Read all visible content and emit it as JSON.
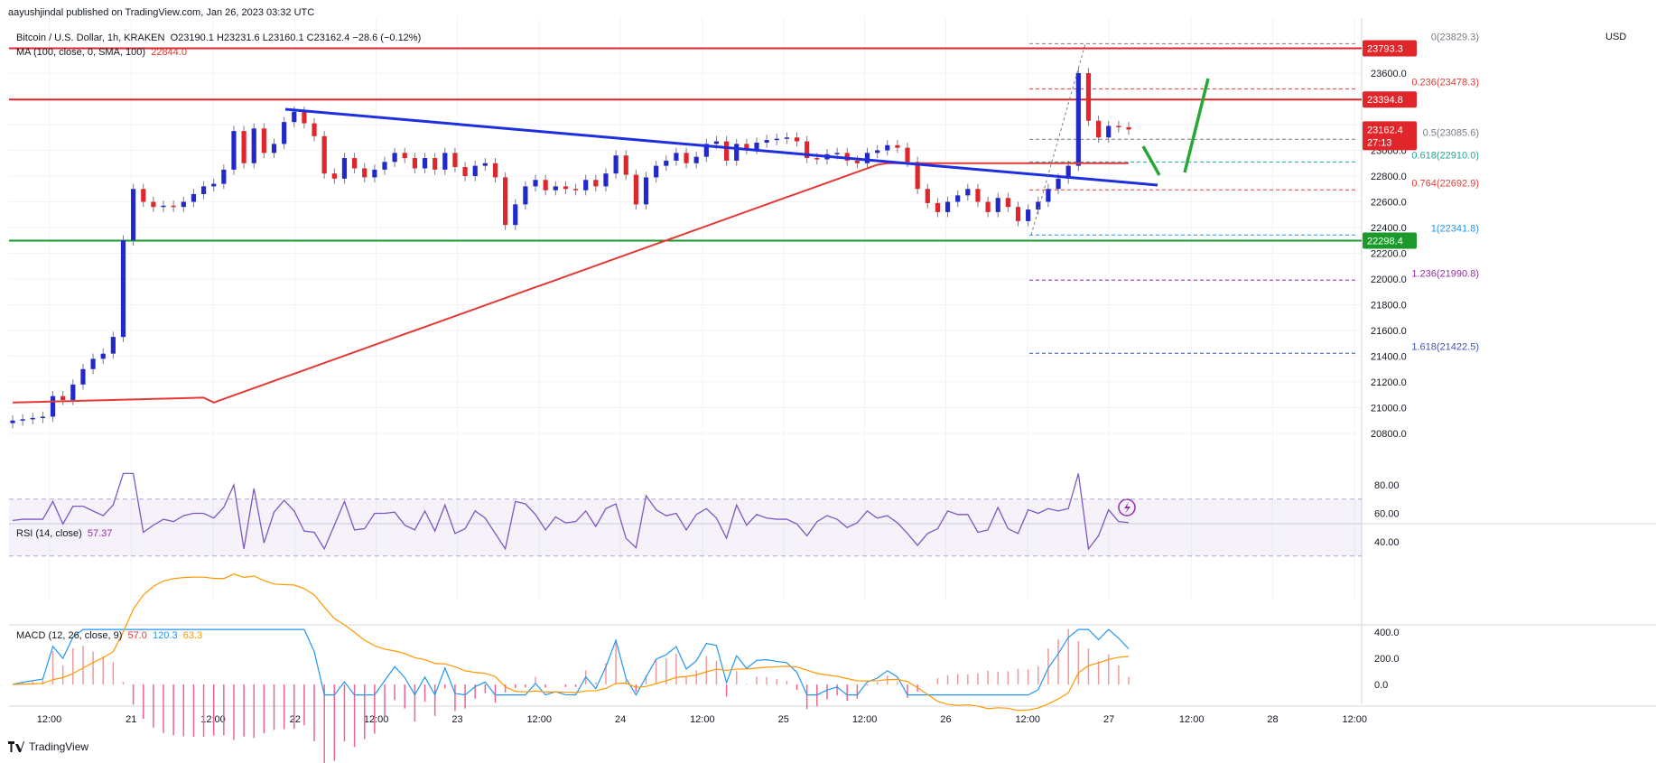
{
  "header": {
    "publisher": "aayushjindal published on TradingView.com, Jan 26, 2023 03:32 UTC",
    "symbol": "Bitcoin / U.S. Dollar, 1h, KRAKEN",
    "ohlc": "O23190.1  H23231.6  L23160.1  C23162.4  −28.6 (−0.12%)",
    "ma_label": "MA (100, close, 0, SMA, 100)",
    "ma_value": "22844.0",
    "currency": "USD"
  },
  "rsi": {
    "label": "RSI (14, close)",
    "value": "57.37"
  },
  "macd": {
    "label": "MACD (12, 26, close, 9)",
    "hist": "57.0",
    "macd": "120.3",
    "signal": "63.3"
  },
  "footer": {
    "brand": "TradingView"
  },
  "colors": {
    "up": "#2229c9",
    "down": "#e0262b",
    "resistance": "#e0262b",
    "support": "#1a9a2a",
    "trendline": "#1f2ee0",
    "ma": "#e53935",
    "rsi": "#7e57c2",
    "macd": "#2196f3",
    "signal": "#ff9800",
    "arrow": "#27a736"
  },
  "chart_data": {
    "type": "candlestick",
    "title": "Bitcoin / U.S. Dollar, 1h, KRAKEN",
    "x_tick_labels": [
      "12:00",
      "21",
      "12:00",
      "22",
      "12:00",
      "23",
      "12:00",
      "24",
      "12:00",
      "25",
      "12:00",
      "26",
      "12:00",
      "27",
      "12:00",
      "28",
      "12:00"
    ],
    "y_tick_labels": [
      20800,
      21000,
      21200,
      21400,
      21600,
      21800,
      22000,
      22200,
      22400,
      22600,
      22800,
      23000,
      23200,
      23400,
      23600
    ],
    "ylim": [
      20650,
      23960
    ],
    "closes": [
      20900,
      20910,
      20920,
      20930,
      21090,
      21060,
      21180,
      21300,
      21380,
      21420,
      21550,
      22300,
      22700,
      22600,
      22560,
      22570,
      22560,
      22600,
      22660,
      22720,
      22740,
      22850,
      23150,
      22900,
      23170,
      22980,
      23050,
      23220,
      23300,
      23210,
      23110,
      22820,
      22780,
      22940,
      22860,
      22790,
      22850,
      22910,
      22980,
      22940,
      22860,
      22940,
      22850,
      22980,
      22870,
      22800,
      22880,
      22900,
      22790,
      22420,
      22580,
      22720,
      22770,
      22690,
      22720,
      22700,
      22690,
      22770,
      22720,
      22820,
      22960,
      22810,
      22580,
      22790,
      22880,
      22920,
      22980,
      22900,
      22950,
      23050,
      23070,
      22920,
      23050,
      23010,
      23060,
      23080,
      23090,
      23100,
      23070,
      22940,
      22930,
      22970,
      22980,
      22920,
      22900,
      22980,
      23000,
      23040,
      23020,
      22910,
      22700,
      22590,
      22520,
      22600,
      22650,
      22700,
      22600,
      22520,
      22630,
      22560,
      22450,
      22540,
      22600,
      22700,
      22780,
      22880,
      23600,
      23230,
      23100,
      23190,
      23180,
      23162
    ],
    "resistance_levels": [
      23793.3,
      23394.8
    ],
    "support_level": 22298.4,
    "last_price": "23162.4",
    "countdown": "27:13",
    "price_labels": [
      "23793.3",
      "23394.8",
      "23162.4",
      "22298.4"
    ],
    "fibonacci": [
      {
        "ratio": "0",
        "price": "23829.3"
      },
      {
        "ratio": "0.236",
        "price": "23478.3"
      },
      {
        "ratio": "0.5",
        "price": "23085.6"
      },
      {
        "ratio": "0.618",
        "price": "22910.0"
      },
      {
        "ratio": "0.764",
        "price": "22692.9"
      },
      {
        "ratio": "1",
        "price": "22341.8"
      },
      {
        "ratio": "1.236",
        "price": "21990.8"
      },
      {
        "ratio": "1.618",
        "price": "21422.5"
      }
    ],
    "rsi_ticks": [
      "80.00",
      "60.00",
      "40.00"
    ],
    "macd_ticks": [
      "400.0",
      "200.0",
      "0.0"
    ]
  }
}
